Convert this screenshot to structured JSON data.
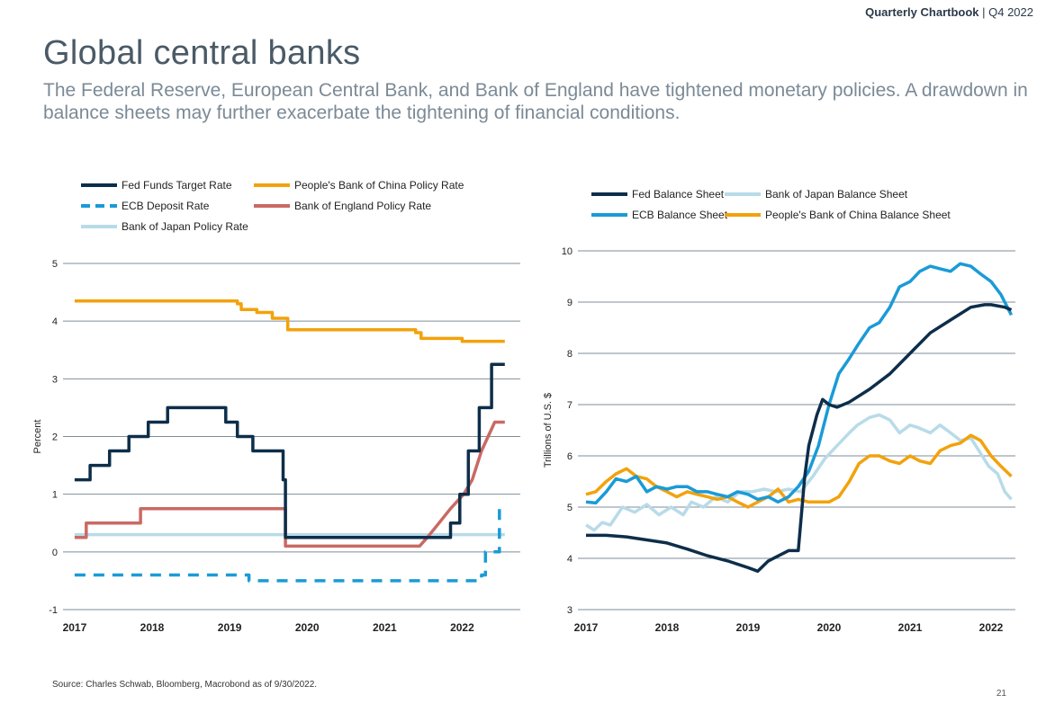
{
  "header": {
    "report_name": "Quarterly Chartbook",
    "separator": " | ",
    "period": "Q4 2022"
  },
  "page": {
    "title": "Global central banks",
    "subtitle": "The Federal Reserve, European Central Bank, and Bank of England have tightened monetary policies. A drawdown in balance sheets may further exacerbate the tightening of financial conditions.",
    "source": "Source: Charles Schwab, Bloomberg, Macrobond as of 9/30/2022.",
    "page_number": "21"
  },
  "colors": {
    "fed": "#0d2e4a",
    "ecb": "#1a9bd7",
    "boj": "#b8dbe8",
    "pboc": "#f2a20c",
    "boe": "#c96a63",
    "grid": "#7f8e99"
  },
  "chart_data": [
    {
      "type": "line",
      "xlabel": "",
      "ylabel": "Percent",
      "xlim": [
        2016.85,
        2022.75
      ],
      "ylim": [
        -1,
        5
      ],
      "xticks": [
        2017,
        2018,
        2019,
        2020,
        2021,
        2022
      ],
      "xtick_labels": [
        "2017",
        "2018",
        "2019",
        "2020",
        "2021",
        "2022"
      ],
      "yticks": [
        -1,
        0,
        1,
        2,
        3,
        4,
        5
      ],
      "ytick_labels": [
        "-1",
        "0",
        "1",
        "2",
        "3",
        "4",
        "5"
      ],
      "grid": true,
      "legend_position": "top-left",
      "series": [
        {
          "name": "Fed Funds Target Rate",
          "color": "#0d2e4a",
          "dash": false,
          "x": [
            2017.0,
            2017.2,
            2017.2,
            2017.45,
            2017.45,
            2017.7,
            2017.7,
            2017.95,
            2017.95,
            2018.2,
            2018.2,
            2018.45,
            2018.45,
            2018.7,
            2018.7,
            2018.95,
            2018.95,
            2019.1,
            2019.1,
            2019.3,
            2019.3,
            2019.55,
            2019.55,
            2019.69,
            2019.69,
            2019.72,
            2019.72,
            2021.67,
            2021.67,
            2021.85,
            2021.85,
            2021.97,
            2021.97,
            2022.08,
            2022.08,
            2022.22,
            2022.22,
            2022.38,
            2022.38,
            2022.55,
            2022.55
          ],
          "y": [
            1.25,
            1.25,
            1.5,
            1.5,
            1.75,
            1.75,
            2.0,
            2.0,
            2.25,
            2.25,
            2.5,
            2.5,
            2.5,
            2.5,
            2.5,
            2.5,
            2.25,
            2.25,
            2.0,
            2.0,
            1.75,
            1.75,
            1.75,
            1.75,
            1.25,
            1.25,
            0.25,
            0.25,
            0.25,
            0.25,
            0.5,
            0.5,
            1.0,
            1.0,
            1.75,
            1.75,
            2.5,
            2.5,
            3.25,
            3.25,
            3.25
          ]
        },
        {
          "name": "ECB Deposit Rate",
          "color": "#1a9bd7",
          "dash": true,
          "x": [
            2017.0,
            2019.25,
            2019.25,
            2022.2,
            2022.2,
            2022.25,
            2022.25,
            2022.3,
            2022.3,
            2022.48,
            2022.48,
            2022.55
          ],
          "y": [
            -0.4,
            -0.4,
            -0.5,
            -0.5,
            -0.5,
            -0.5,
            -0.4,
            -0.4,
            0.0,
            0.0,
            0.75,
            0.75
          ]
        },
        {
          "name": "Bank of Japan Policy Rate",
          "color": "#b8dbe8",
          "dash": false,
          "x": [
            2017.0,
            2022.55
          ],
          "y": [
            0.3,
            0.3
          ]
        },
        {
          "name": "People's Bank of China Policy Rate",
          "color": "#f2a20c",
          "dash": false,
          "x": [
            2017.0,
            2019.1,
            2019.1,
            2019.15,
            2019.15,
            2019.35,
            2019.35,
            2019.55,
            2019.55,
            2019.68,
            2019.68,
            2019.75,
            2019.75,
            2021.4,
            2021.4,
            2021.47,
            2021.47,
            2021.52,
            2021.52,
            2022.0,
            2022.0,
            2022.38,
            2022.38,
            2022.55
          ],
          "y": [
            4.35,
            4.35,
            4.3,
            4.3,
            4.2,
            4.2,
            4.15,
            4.15,
            4.05,
            4.05,
            4.05,
            4.05,
            3.85,
            3.85,
            3.8,
            3.8,
            3.7,
            3.7,
            3.7,
            3.7,
            3.65,
            3.65,
            3.65,
            3.65
          ]
        },
        {
          "name": "Bank of England Policy Rate",
          "color": "#c96a63",
          "dash": false,
          "x": [
            2017.0,
            2017.15,
            2017.15,
            2017.85,
            2017.85,
            2019.72,
            2019.72,
            2021.45,
            2021.45,
            2021.55,
            2021.55,
            2021.7,
            2021.7,
            2021.85,
            2021.85,
            2022.02,
            2022.02,
            2022.13,
            2022.13,
            2022.25,
            2022.25,
            2022.42,
            2022.42,
            2022.55
          ],
          "y": [
            0.25,
            0.25,
            0.5,
            0.5,
            0.75,
            0.75,
            0.1,
            0.1,
            0.1,
            0.25,
            0.25,
            0.5,
            0.5,
            0.75,
            0.75,
            1.0,
            1.0,
            1.25,
            1.25,
            1.75,
            1.75,
            2.25,
            2.25,
            2.25
          ]
        }
      ]
    },
    {
      "type": "line",
      "xlabel": "",
      "ylabel": "Trillions of U.S. $",
      "xlim": [
        2016.9,
        2022.3
      ],
      "ylim": [
        3,
        10
      ],
      "xticks": [
        2017,
        2018,
        2019,
        2020,
        2021,
        2022
      ],
      "xtick_labels": [
        "2017",
        "2018",
        "2019",
        "2020",
        "2021",
        "2022"
      ],
      "yticks": [
        3,
        4,
        5,
        6,
        7,
        8,
        9,
        10
      ],
      "ytick_labels": [
        "3",
        "4",
        "5",
        "6",
        "7",
        "8",
        "9",
        "10"
      ],
      "grid": true,
      "legend_position": "top",
      "series": [
        {
          "name": "Fed Balance Sheet",
          "color": "#0d2e4a",
          "dash": false,
          "x": [
            2017.0,
            2017.25,
            2017.5,
            2017.75,
            2018.0,
            2018.25,
            2018.5,
            2018.75,
            2019.0,
            2019.12,
            2019.25,
            2019.5,
            2019.62,
            2019.7,
            2019.75,
            2019.85,
            2019.92,
            2020.0,
            2020.1,
            2020.25,
            2020.5,
            2020.75,
            2021.0,
            2021.25,
            2021.5,
            2021.75,
            2021.92,
            2022.0,
            2022.17,
            2022.25
          ],
          "y": [
            4.45,
            4.45,
            4.42,
            4.36,
            4.3,
            4.18,
            4.05,
            3.95,
            3.82,
            3.75,
            3.95,
            4.15,
            4.15,
            5.6,
            6.2,
            6.8,
            7.1,
            7.0,
            6.95,
            7.05,
            7.3,
            7.6,
            8.0,
            8.4,
            8.65,
            8.9,
            8.95,
            8.95,
            8.9,
            8.85
          ]
        },
        {
          "name": "Bank of Japan Balance Sheet",
          "color": "#b8dbe8",
          "dash": false,
          "x": [
            2017.0,
            2017.1,
            2017.2,
            2017.3,
            2017.45,
            2017.6,
            2017.75,
            2017.9,
            2018.05,
            2018.2,
            2018.3,
            2018.45,
            2018.6,
            2018.75,
            2018.9,
            2019.05,
            2019.2,
            2019.35,
            2019.5,
            2019.65,
            2019.8,
            2019.95,
            2020.1,
            2020.25,
            2020.35,
            2020.5,
            2020.62,
            2020.75,
            2020.87,
            2021.0,
            2021.1,
            2021.25,
            2021.37,
            2021.5,
            2021.62,
            2021.75,
            2021.85,
            2021.97,
            2022.08,
            2022.17,
            2022.25
          ],
          "y": [
            4.65,
            4.55,
            4.7,
            4.65,
            5.0,
            4.9,
            5.05,
            4.85,
            5.0,
            4.85,
            5.1,
            5.0,
            5.2,
            5.1,
            5.3,
            5.3,
            5.35,
            5.3,
            5.35,
            5.3,
            5.6,
            5.95,
            6.2,
            6.45,
            6.6,
            6.75,
            6.8,
            6.7,
            6.45,
            6.6,
            6.55,
            6.45,
            6.6,
            6.45,
            6.3,
            6.35,
            6.1,
            5.8,
            5.65,
            5.3,
            5.15
          ]
        },
        {
          "name": "ECB Balance Sheet",
          "color": "#1a9bd7",
          "dash": false,
          "x": [
            2017.0,
            2017.12,
            2017.25,
            2017.37,
            2017.5,
            2017.62,
            2017.75,
            2017.87,
            2018.0,
            2018.12,
            2018.25,
            2018.37,
            2018.5,
            2018.62,
            2018.75,
            2018.87,
            2019.0,
            2019.12,
            2019.25,
            2019.37,
            2019.5,
            2019.62,
            2019.75,
            2019.87,
            2020.0,
            2020.12,
            2020.25,
            2020.37,
            2020.5,
            2020.62,
            2020.75,
            2020.87,
            2021.0,
            2021.12,
            2021.25,
            2021.37,
            2021.5,
            2021.62,
            2021.75,
            2021.87,
            2022.0,
            2022.12,
            2022.25
          ],
          "y": [
            5.1,
            5.08,
            5.3,
            5.55,
            5.5,
            5.6,
            5.3,
            5.4,
            5.35,
            5.4,
            5.4,
            5.3,
            5.3,
            5.25,
            5.2,
            5.3,
            5.25,
            5.15,
            5.2,
            5.1,
            5.2,
            5.4,
            5.7,
            6.2,
            7.0,
            7.6,
            7.9,
            8.2,
            8.5,
            8.6,
            8.9,
            9.3,
            9.4,
            9.6,
            9.7,
            9.65,
            9.6,
            9.75,
            9.7,
            9.55,
            9.4,
            9.15,
            8.75
          ]
        },
        {
          "name": "People's Bank of China Balance Sheet",
          "color": "#f2a20c",
          "dash": false,
          "x": [
            2017.0,
            2017.12,
            2017.25,
            2017.37,
            2017.5,
            2017.62,
            2017.75,
            2017.87,
            2018.0,
            2018.12,
            2018.25,
            2018.37,
            2018.5,
            2018.62,
            2018.75,
            2018.87,
            2019.0,
            2019.12,
            2019.25,
            2019.37,
            2019.5,
            2019.62,
            2019.75,
            2019.87,
            2020.0,
            2020.12,
            2020.25,
            2020.37,
            2020.5,
            2020.62,
            2020.75,
            2020.87,
            2021.0,
            2021.12,
            2021.25,
            2021.37,
            2021.5,
            2021.62,
            2021.75,
            2021.87,
            2022.0,
            2022.12,
            2022.25
          ],
          "y": [
            5.25,
            5.3,
            5.5,
            5.65,
            5.75,
            5.6,
            5.55,
            5.4,
            5.3,
            5.2,
            5.3,
            5.25,
            5.2,
            5.15,
            5.2,
            5.1,
            5.0,
            5.1,
            5.2,
            5.35,
            5.1,
            5.15,
            5.1,
            5.1,
            5.1,
            5.2,
            5.5,
            5.85,
            6.0,
            6.0,
            5.9,
            5.85,
            6.0,
            5.9,
            5.85,
            6.1,
            6.2,
            6.25,
            6.4,
            6.3,
            6.0,
            5.8,
            5.6
          ]
        }
      ]
    }
  ]
}
